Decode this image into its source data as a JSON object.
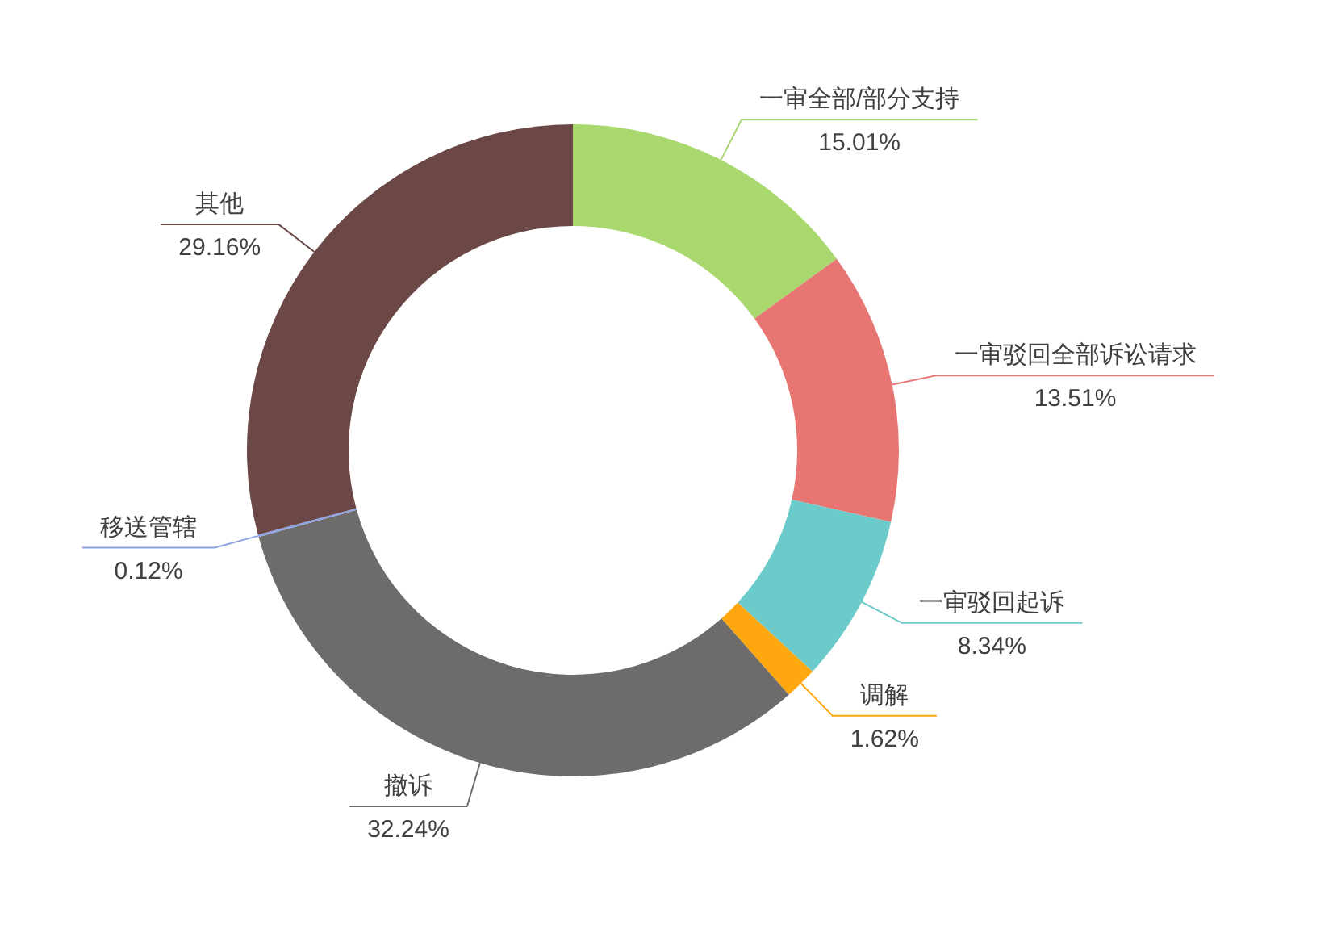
{
  "chart_data": {
    "type": "donut",
    "categories": [
      "一审全部/部分支持",
      "一审驳回全部诉讼请求",
      "一审驳回起诉",
      "调解",
      "撤诉",
      "移送管辖",
      "其他"
    ],
    "values": [
      15.01,
      13.51,
      8.34,
      1.62,
      32.24,
      0.12,
      29.16
    ],
    "value_labels": [
      "15.01%",
      "13.51%",
      "8.34%",
      "1.62%",
      "32.24%",
      "0.12%",
      "29.16%"
    ],
    "colors": [
      "#a8d86e",
      "#e77673",
      "#6bcbca",
      "#ffa70f",
      "#6e6b6b",
      "#8ea4e6",
      "#6b4846"
    ]
  }
}
